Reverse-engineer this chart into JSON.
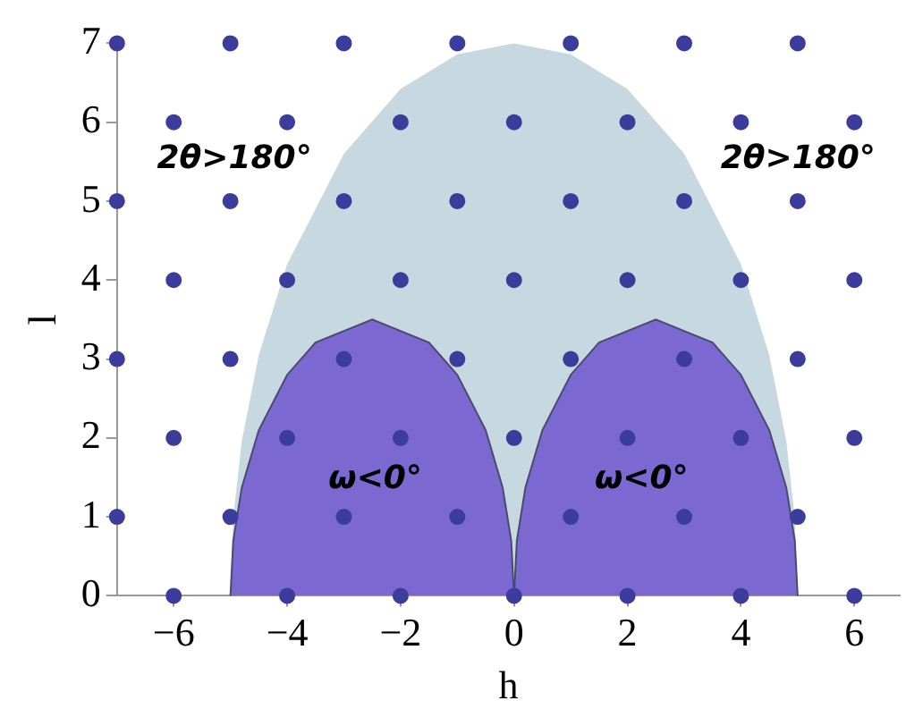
{
  "chart_data": {
    "type": "area",
    "xlabel": "h",
    "ylabel": "l",
    "xlim": [
      -7,
      6.8
    ],
    "ylim": [
      0,
      7
    ],
    "xticks": [
      -6,
      -4,
      -2,
      0,
      2,
      4,
      6
    ],
    "yticks": [
      0,
      1,
      2,
      3,
      4,
      5,
      6,
      7
    ],
    "grid": false,
    "legend": false,
    "series": [
      {
        "color": "#c8d8e0",
        "x": [
          -5,
          -4.95,
          -4.8,
          -4.5,
          -4,
          -3,
          -2,
          -1,
          0,
          1,
          2,
          3,
          4,
          4.5,
          4.8,
          4.95,
          5
        ],
        "values": [
          0,
          0.99,
          1.96,
          3.05,
          4.2,
          5.6,
          6.42,
          6.86,
          7,
          6.86,
          6.42,
          5.6,
          4.2,
          3.05,
          1.96,
          0.99,
          0
        ]
      },
      {
        "color": "#7b68d0",
        "x": [
          -5,
          -4.95,
          -4.8,
          -4.5,
          -4,
          -3.5,
          -2.5,
          -1.5,
          -1,
          -0.5,
          -0.2,
          -0.05,
          0
        ],
        "values": [
          0,
          0.7,
          1.37,
          2.1,
          2.8,
          3.21,
          3.5,
          3.21,
          2.8,
          2.1,
          1.37,
          0.7,
          0
        ]
      },
      {
        "color": "#7b68d0",
        "x": [
          0,
          0.05,
          0.2,
          0.5,
          1,
          1.5,
          2.5,
          3.5,
          4,
          4.5,
          4.8,
          4.95,
          5
        ],
        "values": [
          0,
          0.7,
          1.37,
          2.1,
          2.8,
          3.21,
          3.5,
          3.21,
          2.8,
          2.1,
          1.37,
          0.7,
          0
        ]
      },
      {
        "type": "scatter",
        "marker": "circle",
        "color": "#3c3c9c",
        "x": [
          -6,
          -4,
          -2,
          0,
          2,
          4,
          6,
          -7,
          -5,
          -3,
          -1,
          1,
          3,
          5,
          -6,
          -4,
          -2,
          0,
          2,
          4,
          6,
          -7,
          -5,
          -3,
          -1,
          1,
          3,
          5,
          -6,
          -4,
          -2,
          0,
          2,
          4,
          6,
          -7,
          -5,
          -3,
          -1,
          1,
          3,
          5,
          -6,
          -4,
          -2,
          0,
          2,
          4,
          6,
          -7,
          -5,
          -3,
          -1,
          1,
          3,
          5
        ],
        "values": [
          0,
          0,
          0,
          0,
          0,
          0,
          0,
          1,
          1,
          1,
          1,
          1,
          1,
          1,
          2,
          2,
          2,
          2,
          2,
          2,
          2,
          3,
          3,
          3,
          3,
          3,
          3,
          3,
          4,
          4,
          4,
          4,
          4,
          4,
          4,
          5,
          5,
          5,
          5,
          5,
          5,
          5,
          6,
          6,
          6,
          6,
          6,
          6,
          6,
          7,
          7,
          7,
          7,
          7,
          7,
          7
        ]
      }
    ],
    "annotations": [
      "2θ>180°",
      "2θ>180°",
      "ω<0°",
      "ω<0°"
    ]
  }
}
